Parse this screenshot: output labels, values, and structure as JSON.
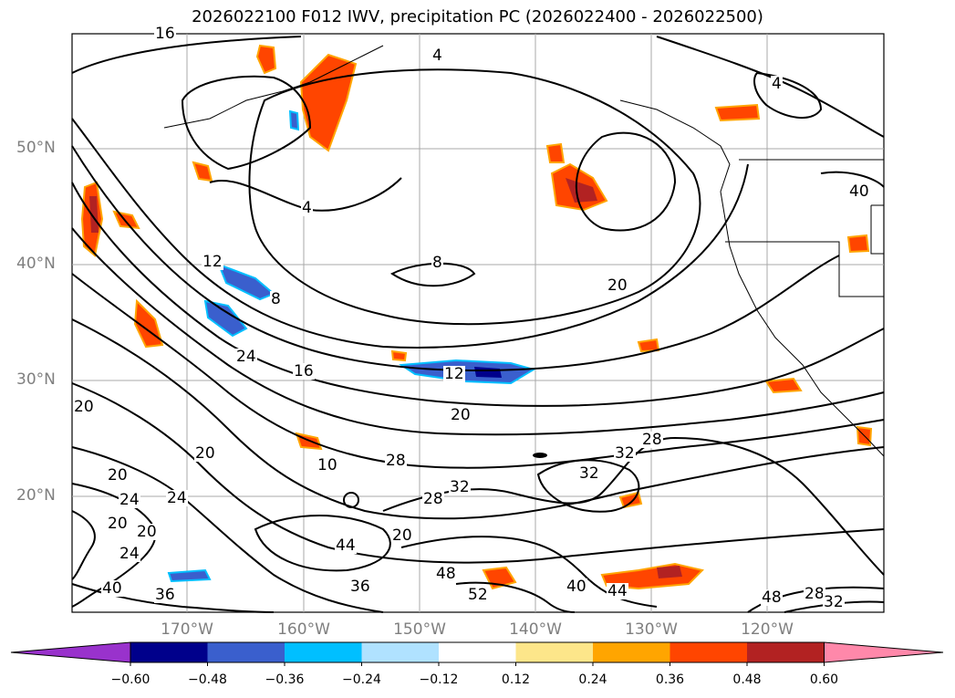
{
  "title": "2026022100 F012 IWV, precipitation PC (2026022400 - 2026022500)",
  "map": {
    "lat_labels": [
      "50°N",
      "40°N",
      "30°N",
      "20°N"
    ],
    "lon_labels": [
      "170°W",
      "160°W",
      "150°W",
      "140°W",
      "130°W",
      "120°W"
    ],
    "contour_labels": [
      "16",
      "4",
      "4",
      "4",
      "8",
      "12",
      "20",
      "8",
      "24",
      "16",
      "12",
      "20",
      "20",
      "28",
      "32",
      "28",
      "32",
      "20",
      "20",
      "10",
      "20",
      "24",
      "24",
      "28",
      "32",
      "20",
      "20",
      "24",
      "44",
      "40",
      "36",
      "36",
      "48",
      "52",
      "40",
      "44",
      "48",
      "28",
      "32",
      "40"
    ]
  },
  "colorbar": {
    "ticks": [
      "−0.60",
      "−0.48",
      "−0.36",
      "−0.24",
      "−0.12",
      "0.12",
      "0.24",
      "0.36",
      "0.48",
      "0.60"
    ],
    "colors": [
      "#9932cc",
      "#00008b",
      "#3a5fcd",
      "#00bfff",
      "#b0e2ff",
      "#ffffff",
      "#fde68a",
      "#ffa500",
      "#ff4500",
      "#b22222",
      "#ff88aa"
    ]
  }
}
